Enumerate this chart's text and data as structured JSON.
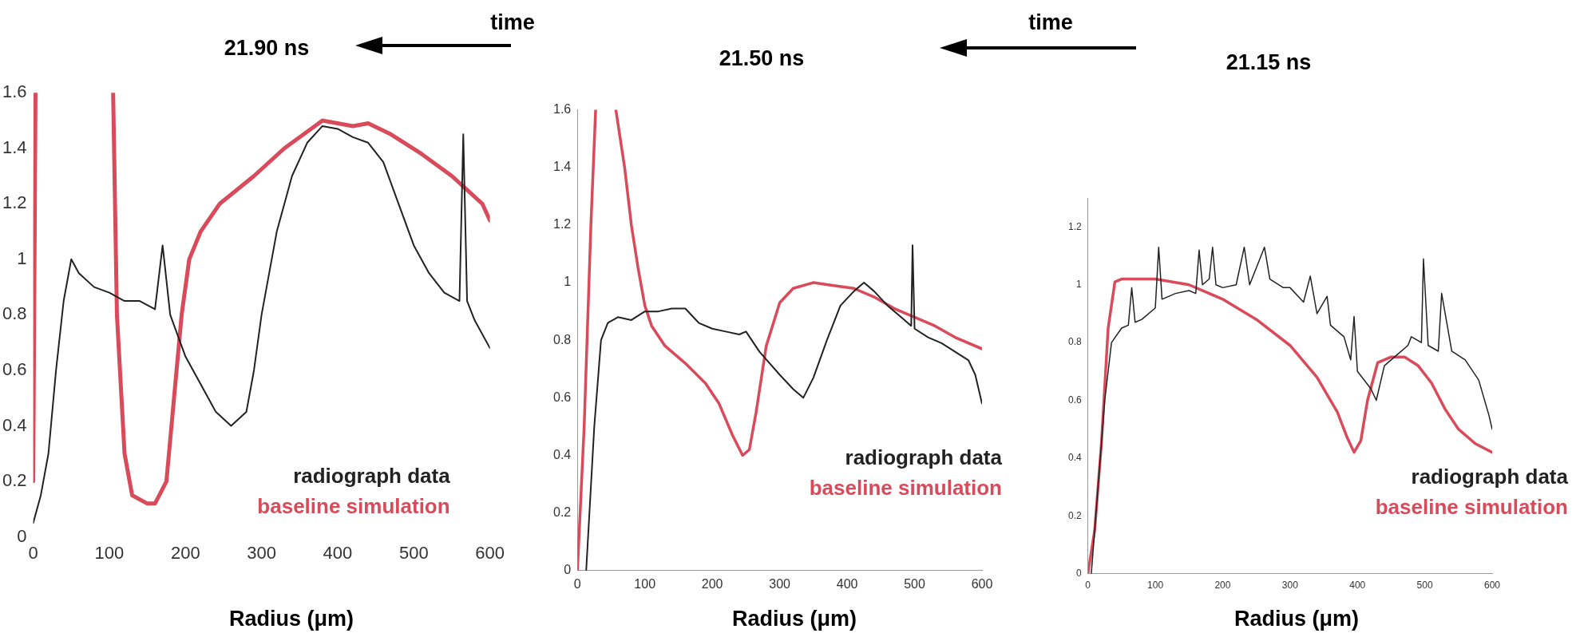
{
  "chart_data": [
    {
      "type": "line",
      "title": "21.90 ns",
      "xlabel": "Radius (μm)",
      "annotations": [
        "time"
      ],
      "xlim": [
        0,
        600
      ],
      "ylim": [
        0,
        1.6
      ],
      "xticks": [
        0,
        100,
        200,
        300,
        400,
        500,
        600
      ],
      "yticks": [
        0,
        0.2,
        0.4,
        0.6,
        0.8,
        1,
        1.2,
        1.4,
        1.6
      ],
      "grid": false,
      "legend": "bottom right",
      "marker": "none",
      "line_style": "solid",
      "series": [
        {
          "name": "radiograph data",
          "color": "#222222",
          "x": [
            0,
            10,
            20,
            30,
            40,
            50,
            60,
            80,
            100,
            120,
            140,
            160,
            170,
            180,
            200,
            220,
            240,
            260,
            280,
            290,
            300,
            320,
            340,
            360,
            380,
            400,
            420,
            440,
            460,
            480,
            500,
            520,
            540,
            560,
            565,
            570,
            580,
            600
          ],
          "values": [
            0.05,
            0.15,
            0.3,
            0.6,
            0.85,
            1.0,
            0.95,
            0.9,
            0.88,
            0.85,
            0.85,
            0.82,
            1.05,
            0.8,
            0.65,
            0.55,
            0.45,
            0.4,
            0.45,
            0.6,
            0.8,
            1.1,
            1.3,
            1.42,
            1.48,
            1.47,
            1.44,
            1.42,
            1.35,
            1.2,
            1.05,
            0.95,
            0.88,
            0.85,
            1.45,
            0.85,
            0.78,
            0.68
          ]
        },
        {
          "name": "baseline simulation",
          "color": "#d94a5a",
          "x": [
            0,
            3,
            50,
            105,
            110,
            120,
            130,
            150,
            160,
            175,
            185,
            195,
            205,
            220,
            245,
            290,
            330,
            370,
            380,
            420,
            440,
            470,
            510,
            550,
            570,
            590,
            600
          ],
          "values": [
            0.2,
            1.6,
            null,
            1.6,
            0.8,
            0.3,
            0.15,
            0.12,
            0.12,
            0.2,
            0.5,
            0.8,
            1.0,
            1.1,
            1.2,
            1.3,
            1.4,
            1.48,
            1.5,
            1.48,
            1.49,
            1.45,
            1.38,
            1.3,
            1.25,
            1.2,
            1.14
          ]
        }
      ]
    },
    {
      "type": "line",
      "title": "21.50 ns",
      "xlabel": "Radius (μm)",
      "annotations": [
        "time"
      ],
      "xlim": [
        0,
        600
      ],
      "ylim": [
        0,
        1.6
      ],
      "xticks": [
        0,
        100,
        200,
        300,
        400,
        500,
        600
      ],
      "yticks": [
        0,
        0.2,
        0.4,
        0.6,
        0.8,
        1,
        1.2,
        1.4,
        1.6
      ],
      "grid": false,
      "legend": "bottom right",
      "marker": "none",
      "line_style": "solid",
      "series": [
        {
          "name": "radiograph data",
          "color": "#222222",
          "x": [
            13,
            25,
            35,
            45,
            60,
            80,
            100,
            120,
            140,
            160,
            180,
            200,
            220,
            240,
            250,
            270,
            300,
            320,
            335,
            350,
            370,
            390,
            410,
            425,
            440,
            460,
            480,
            495,
            497,
            500,
            520,
            540,
            560,
            580,
            590,
            600
          ],
          "values": [
            0,
            0.5,
            0.8,
            0.86,
            0.88,
            0.87,
            0.9,
            0.9,
            0.91,
            0.91,
            0.86,
            0.84,
            0.83,
            0.82,
            0.83,
            0.76,
            0.68,
            0.63,
            0.6,
            0.67,
            0.8,
            0.92,
            0.97,
            1.0,
            0.97,
            0.92,
            0.88,
            0.85,
            1.13,
            0.84,
            0.81,
            0.79,
            0.76,
            0.73,
            0.68,
            0.58
          ]
        },
        {
          "name": "baseline simulation",
          "color": "#d94a5a",
          "x": [
            0,
            10,
            20,
            27,
            40,
            57,
            70,
            80,
            90,
            100,
            110,
            130,
            160,
            190,
            210,
            230,
            245,
            255,
            265,
            280,
            300,
            320,
            350,
            380,
            410,
            440,
            470,
            500,
            530,
            560,
            600
          ],
          "values": [
            0,
            0.5,
            1.2,
            1.6,
            null,
            1.6,
            1.4,
            1.2,
            1.05,
            0.92,
            0.85,
            0.78,
            0.72,
            0.65,
            0.58,
            0.47,
            0.4,
            0.42,
            0.55,
            0.78,
            0.93,
            0.98,
            1.0,
            0.99,
            0.98,
            0.95,
            0.91,
            0.88,
            0.85,
            0.81,
            0.77
          ]
        }
      ]
    },
    {
      "type": "line",
      "title": "21.15 ns",
      "xlabel": "Radius (μm)",
      "xlim": [
        0,
        600
      ],
      "ylim": [
        0,
        1.3
      ],
      "xticks": [
        0,
        100,
        200,
        300,
        400,
        500,
        600
      ],
      "yticks": [
        0,
        0.2,
        0.4,
        0.6,
        0.8,
        1,
        1.2
      ],
      "grid": false,
      "legend": "bottom right",
      "marker": "none",
      "line_style": "solid",
      "series": [
        {
          "name": "radiograph data",
          "color": "#222222",
          "x": [
            5,
            15,
            25,
            35,
            50,
            60,
            65,
            70,
            80,
            100,
            105,
            110,
            130,
            150,
            160,
            165,
            170,
            180,
            185,
            190,
            200,
            220,
            232,
            240,
            262,
            270,
            290,
            300,
            320,
            330,
            340,
            355,
            360,
            380,
            390,
            395,
            400,
            420,
            428,
            440,
            460,
            475,
            480,
            495,
            498,
            505,
            520,
            525,
            540,
            560,
            580,
            595,
            600
          ],
          "values": [
            0,
            0.3,
            0.6,
            0.8,
            0.85,
            0.86,
            0.99,
            0.87,
            0.88,
            0.92,
            1.13,
            0.95,
            0.97,
            0.98,
            0.97,
            1.12,
            1.0,
            1.02,
            1.13,
            1.0,
            0.99,
            1.0,
            1.13,
            1.0,
            1.13,
            1.02,
            0.99,
            0.99,
            0.94,
            1.03,
            0.9,
            0.96,
            0.86,
            0.82,
            0.74,
            0.89,
            0.7,
            0.64,
            0.6,
            0.72,
            0.76,
            0.79,
            0.82,
            0.8,
            1.09,
            0.79,
            0.77,
            0.97,
            0.77,
            0.74,
            0.67,
            0.55,
            0.5
          ]
        },
        {
          "name": "baseline simulation",
          "color": "#d94a5a",
          "x": [
            0,
            10,
            20,
            30,
            40,
            50,
            100,
            150,
            200,
            250,
            300,
            340,
            370,
            385,
            395,
            405,
            415,
            430,
            450,
            470,
            490,
            510,
            530,
            550,
            575,
            600
          ],
          "values": [
            0,
            0.15,
            0.45,
            0.85,
            1.01,
            1.02,
            1.02,
            1.0,
            0.95,
            0.88,
            0.79,
            0.68,
            0.56,
            0.47,
            0.42,
            0.46,
            0.6,
            0.73,
            0.75,
            0.75,
            0.72,
            0.66,
            0.57,
            0.5,
            0.45,
            0.42
          ]
        }
      ]
    }
  ]
}
